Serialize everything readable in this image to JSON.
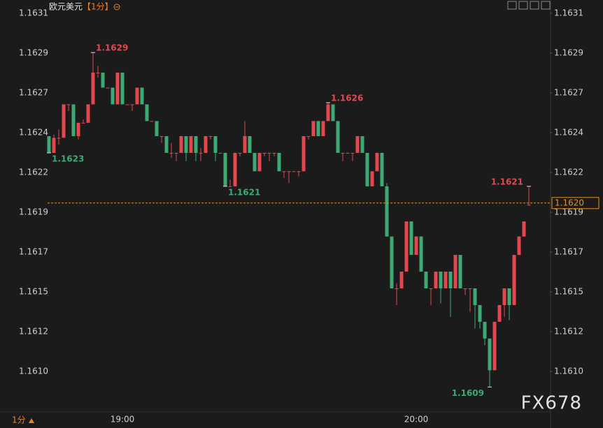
{
  "chart_data": {
    "type": "candlestick",
    "title": "欧元美元",
    "interval": "【1分】",
    "bottom_interval": "1分",
    "watermark": "FX678",
    "up_color": "#e5474e",
    "down_color": "#3daa73",
    "categories": [
      null,
      null,
      null,
      null,
      null,
      null,
      null,
      null,
      null,
      null,
      null,
      null,
      null,
      null,
      null,
      "19:00",
      null,
      null,
      null,
      null,
      null,
      null,
      null,
      null,
      null,
      null,
      null,
      null,
      null,
      null,
      null,
      null,
      null,
      null,
      null,
      null,
      null,
      null,
      null,
      null,
      null,
      null,
      null,
      null,
      null,
      null,
      null,
      null,
      null,
      null,
      null,
      null,
      null,
      null,
      null,
      null,
      null,
      null,
      null,
      null,
      null,
      null,
      null,
      null,
      null,
      null,
      null,
      null,
      null,
      null,
      null,
      null,
      null,
      null,
      null,
      "20:00",
      null,
      null,
      null,
      null,
      null,
      null,
      null,
      null,
      null,
      null,
      null,
      null,
      null,
      null,
      null,
      null,
      null,
      null,
      null,
      null,
      null,
      null,
      null
    ],
    "open": [
      1.1624,
      1.1623,
      1.16239,
      1.16239,
      1.16259,
      1.16259,
      1.1624,
      1.16248,
      1.16248,
      1.16259,
      1.16278,
      1.16278,
      1.16269,
      1.16269,
      1.16259,
      1.16278,
      1.16259,
      1.16259,
      1.16259,
      1.16269,
      1.16259,
      1.16249,
      1.16249,
      1.1624,
      1.1624,
      1.1623,
      1.1623,
      1.1623,
      1.1624,
      1.1623,
      1.1624,
      1.1623,
      1.1623,
      1.1624,
      1.1624,
      1.1623,
      1.1623,
      1.1621,
      1.1621,
      1.1623,
      1.1623,
      1.1624,
      1.1623,
      1.16219,
      1.1623,
      1.1623,
      1.1623,
      1.1623,
      1.16219,
      1.16219,
      1.16219,
      1.16219,
      1.16219,
      1.1624,
      1.1624,
      1.16249,
      1.1624,
      1.16249,
      1.16259,
      1.16249,
      1.1623,
      1.1623,
      1.1623,
      1.1623,
      1.1624,
      1.1623,
      1.1621,
      1.16219,
      1.1623,
      1.1621,
      1.1618,
      1.16149,
      1.16149,
      1.16159,
      1.16189,
      1.16169,
      1.1618,
      1.16159,
      1.16149,
      1.16149,
      1.16159,
      1.16149,
      1.16159,
      1.16149,
      1.16169,
      1.16149,
      1.16149,
      1.16149,
      1.16139,
      1.16129,
      1.16119,
      1.161,
      1.16129,
      1.16139,
      1.16149,
      1.16139,
      1.16169,
      1.1618,
      1.16199
    ],
    "high": [
      1.1624,
      1.16241,
      1.16244,
      1.16259,
      1.16259,
      1.16259,
      1.16248,
      1.1625,
      1.16259,
      1.1629,
      1.16282,
      1.16278,
      1.16269,
      1.16269,
      1.16278,
      1.16278,
      1.16259,
      1.16259,
      1.16269,
      1.16269,
      1.16259,
      1.16249,
      1.16249,
      1.1624,
      1.1624,
      1.16236,
      1.1623,
      1.1624,
      1.1624,
      1.1624,
      1.1624,
      1.16233,
      1.1624,
      1.1624,
      1.1624,
      1.1623,
      1.1623,
      1.16214,
      1.1623,
      1.1623,
      1.16249,
      1.1624,
      1.1623,
      1.1623,
      1.1623,
      1.1623,
      1.1623,
      1.1623,
      1.16219,
      1.16219,
      1.16219,
      1.16219,
      1.1624,
      1.1624,
      1.16249,
      1.16249,
      1.16249,
      1.1626,
      1.16259,
      1.16249,
      1.1623,
      1.1623,
      1.1623,
      1.1624,
      1.1624,
      1.1623,
      1.16219,
      1.1623,
      1.1623,
      1.16212,
      1.1618,
      1.16152,
      1.16159,
      1.16189,
      1.16189,
      1.1618,
      1.1618,
      1.16159,
      1.16149,
      1.16159,
      1.16159,
      1.16159,
      1.16159,
      1.16169,
      1.16169,
      1.16149,
      1.16149,
      1.16149,
      1.16139,
      1.16129,
      1.16119,
      1.16129,
      1.16139,
      1.16149,
      1.16149,
      1.16169,
      1.1618,
      1.16189,
      1.1621
    ],
    "low": [
      1.1623,
      1.1623,
      1.16235,
      1.16239,
      1.16255,
      1.1624,
      1.16238,
      1.16248,
      1.16248,
      1.16259,
      1.16275,
      1.16269,
      1.16269,
      1.16259,
      1.16259,
      1.16259,
      1.16259,
      1.16255,
      1.16259,
      1.16259,
      1.16249,
      1.16249,
      1.1624,
      1.16236,
      1.1623,
      1.16227,
      1.16225,
      1.1623,
      1.16225,
      1.1623,
      1.16225,
      1.16225,
      1.1623,
      1.16238,
      1.16225,
      1.1623,
      1.1621,
      1.1621,
      1.1621,
      1.16228,
      1.1623,
      1.1623,
      1.16219,
      1.16219,
      1.16228,
      1.16225,
      1.16228,
      1.16219,
      1.16215,
      1.16212,
      1.16219,
      1.16216,
      1.16219,
      1.16238,
      1.1624,
      1.1624,
      1.1624,
      1.16249,
      1.16249,
      1.1623,
      1.16225,
      1.1623,
      1.16225,
      1.1623,
      1.1623,
      1.1621,
      1.1621,
      1.16219,
      1.1621,
      1.1618,
      1.16149,
      1.16139,
      1.16149,
      1.16159,
      1.16169,
      1.16169,
      1.16159,
      1.16149,
      1.16139,
      1.16149,
      1.1614,
      1.16149,
      1.16132,
      1.16149,
      1.16149,
      1.16145,
      1.16135,
      1.16125,
      1.16125,
      1.16115,
      1.1609,
      1.161,
      1.16129,
      1.16132,
      1.1613,
      1.16139,
      1.16169,
      1.1618,
      1.16199
    ],
    "close": [
      1.1623,
      1.16239,
      1.16239,
      1.16259,
      1.16259,
      1.1624,
      1.16248,
      1.16248,
      1.16259,
      1.16278,
      1.16278,
      1.16269,
      1.16269,
      1.16259,
      1.16278,
      1.16259,
      1.16259,
      1.16259,
      1.16269,
      1.16259,
      1.16249,
      1.16249,
      1.1624,
      1.1624,
      1.1623,
      1.1623,
      1.1623,
      1.1624,
      1.1623,
      1.1624,
      1.1623,
      1.1623,
      1.1624,
      1.1624,
      1.1623,
      1.1623,
      1.1621,
      1.1621,
      1.1623,
      1.1623,
      1.1624,
      1.1623,
      1.16219,
      1.1623,
      1.1623,
      1.1623,
      1.1623,
      1.16219,
      1.16219,
      1.16219,
      1.16219,
      1.16219,
      1.1624,
      1.1624,
      1.16249,
      1.1624,
      1.16249,
      1.16259,
      1.16249,
      1.1623,
      1.1623,
      1.1623,
      1.1623,
      1.1624,
      1.1623,
      1.1621,
      1.16219,
      1.1623,
      1.1621,
      1.1618,
      1.16149,
      1.16149,
      1.16159,
      1.16189,
      1.16169,
      1.1618,
      1.16159,
      1.16149,
      1.16149,
      1.16159,
      1.16149,
      1.16159,
      1.16149,
      1.16169,
      1.16149,
      1.16149,
      1.16149,
      1.16139,
      1.16129,
      1.16119,
      1.161,
      1.16129,
      1.16139,
      1.16149,
      1.16139,
      1.16169,
      1.1618,
      1.16189,
      1.16199
    ],
    "ylim": [
      1.160751,
      1.163214
    ],
    "yticks": [
      {
        "value": 1.163135,
        "label": "1.1631"
      },
      {
        "value": 1.162897,
        "label": "1.1629"
      },
      {
        "value": 1.162659,
        "label": "1.1627"
      },
      {
        "value": 1.162421,
        "label": "1.1624"
      },
      {
        "value": 1.162183,
        "label": "1.1622"
      },
      {
        "value": 1.161945,
        "label": "1.1619"
      },
      {
        "value": 1.161707,
        "label": "1.1617"
      },
      {
        "value": 1.161469,
        "label": "1.1615"
      },
      {
        "value": 1.161231,
        "label": "1.1612"
      },
      {
        "value": 1.160993,
        "label": "1.1610"
      }
    ],
    "last_price": {
      "value": 1.162,
      "label": "1.1620",
      "color": "#e8902b"
    },
    "annotations": [
      {
        "kind": "high",
        "value": 1.1629,
        "label": "1.1629"
      },
      {
        "kind": "low",
        "value": 1.1623,
        "label": "1.1623"
      },
      {
        "kind": "low",
        "value": 1.1621,
        "label": "1.1621"
      },
      {
        "kind": "high",
        "value": 1.1626,
        "label": "1.1626"
      },
      {
        "kind": "low",
        "value": 1.1609,
        "label": "1.1609"
      },
      {
        "kind": "high",
        "value": 1.1621,
        "label": "1.1621"
      }
    ]
  }
}
